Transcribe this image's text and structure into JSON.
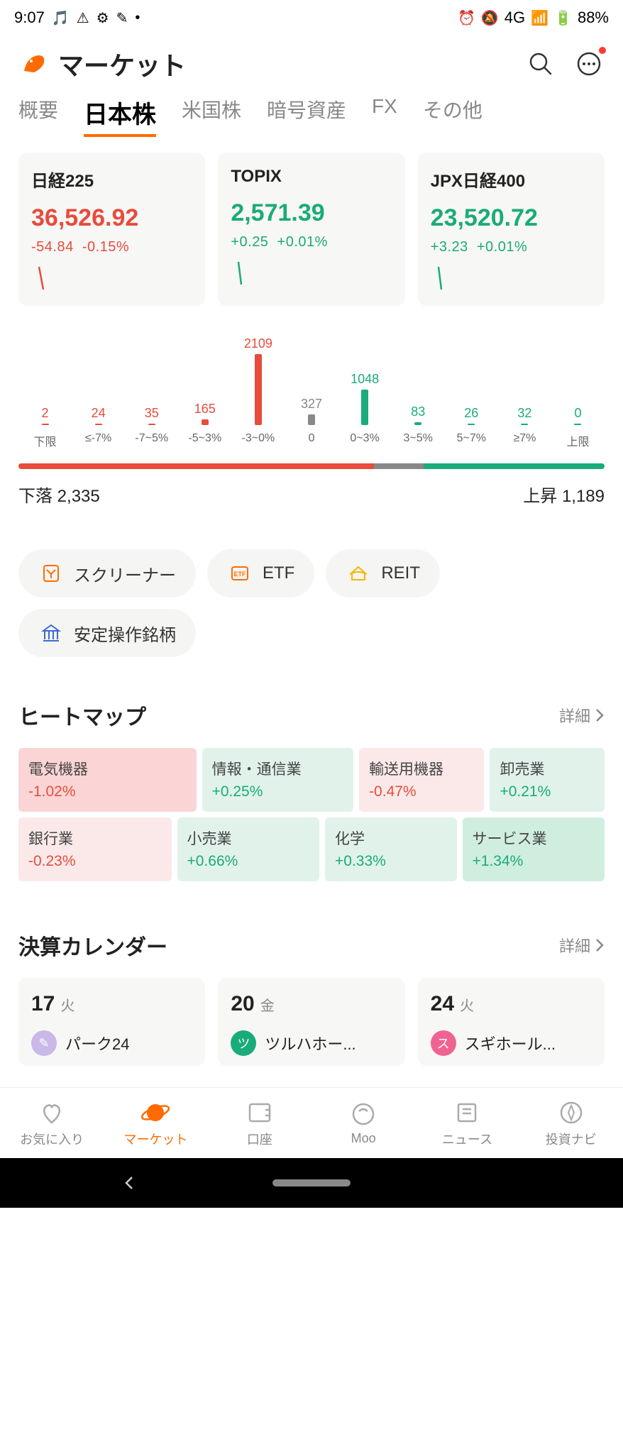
{
  "status": {
    "time": "9:07",
    "network": "4G",
    "battery": "88%"
  },
  "header": {
    "title": "マーケット"
  },
  "tabs": [
    "概要",
    "日本株",
    "米国株",
    "暗号資産",
    "FX",
    "その他"
  ],
  "active_tab": 1,
  "indices": [
    {
      "name": "日経225",
      "value": "36,526.92",
      "change": "-54.84",
      "pct": "-0.15%",
      "dir": "down",
      "color": "#e74c3c"
    },
    {
      "name": "TOPIX",
      "value": "2,571.39",
      "change": "+0.25",
      "pct": "+0.01%",
      "dir": "up",
      "color": "#1aab7a"
    },
    {
      "name": "JPX日経400",
      "value": "23,520.72",
      "change": "+3.23",
      "pct": "+0.01%",
      "dir": "up",
      "color": "#1aab7a"
    }
  ],
  "distribution": {
    "bars": [
      {
        "label": "下限",
        "value": 2,
        "color": "#e74c3c"
      },
      {
        "label": "≤-7%",
        "value": 24,
        "color": "#e74c3c"
      },
      {
        "label": "-7~5%",
        "value": 35,
        "color": "#e74c3c"
      },
      {
        "label": "-5~3%",
        "value": 165,
        "color": "#e74c3c"
      },
      {
        "label": "-3~0%",
        "value": 2109,
        "color": "#e74c3c"
      },
      {
        "label": "0",
        "value": 327,
        "color": "#888"
      },
      {
        "label": "0~3%",
        "value": 1048,
        "color": "#1aab7a"
      },
      {
        "label": "3~5%",
        "value": 83,
        "color": "#1aab7a"
      },
      {
        "label": "5~7%",
        "value": 26,
        "color": "#1aab7a"
      },
      {
        "label": "≥7%",
        "value": 32,
        "color": "#1aab7a"
      },
      {
        "label": "上限",
        "value": 0,
        "color": "#1aab7a"
      }
    ],
    "max": 2109,
    "strip": [
      {
        "color": "#e74c3c",
        "weight": 2335
      },
      {
        "color": "#888",
        "weight": 327
      },
      {
        "color": "#1aab7a",
        "weight": 1189
      }
    ],
    "down_label": "下落",
    "down_count": "2,335",
    "up_label": "上昇",
    "up_count": "1,189"
  },
  "pills": [
    {
      "label": "スクリーナー",
      "icon": "filter",
      "color": "#ff6b00"
    },
    {
      "label": "ETF",
      "icon": "etf",
      "color": "#ff6b00"
    },
    {
      "label": "REIT",
      "icon": "reit",
      "color": "#f5b500"
    },
    {
      "label": "安定操作銘柄",
      "icon": "bank",
      "color": "#3b6bd6"
    }
  ],
  "heatmap": {
    "title": "ヒートマップ",
    "detail": "詳細",
    "row1": [
      {
        "name": "電気機器",
        "pct": "-1.02%",
        "bg": "bg-red-strong",
        "color": "#e74c3c",
        "flex": 3
      },
      {
        "name": "情報・通信業",
        "pct": "+0.25%",
        "bg": "bg-green-weak",
        "color": "#1aab7a",
        "flex": 2.5
      },
      {
        "name": "輸送用機器",
        "pct": "-0.47%",
        "bg": "bg-red-weak",
        "color": "#e74c3c",
        "flex": 2
      },
      {
        "name": "卸売業",
        "pct": "+0.21%",
        "bg": "bg-green-weak",
        "color": "#1aab7a",
        "flex": 1.8
      }
    ],
    "row2": [
      {
        "name": "銀行業",
        "pct": "-0.23%",
        "bg": "bg-red-weak",
        "color": "#e74c3c",
        "flex": 2.5
      },
      {
        "name": "小売業",
        "pct": "+0.66%",
        "bg": "bg-green-weak",
        "color": "#1aab7a",
        "flex": 2.3
      },
      {
        "name": "化学",
        "pct": "+0.33%",
        "bg": "bg-green-weak",
        "color": "#1aab7a",
        "flex": 2.1
      },
      {
        "name": "サービス業",
        "pct": "+1.34%",
        "bg": "bg-green-strong",
        "color": "#1aab7a",
        "flex": 2.3
      }
    ]
  },
  "calendar": {
    "title": "決算カレンダー",
    "detail": "詳細",
    "items": [
      {
        "day": "17",
        "dow": "火",
        "stock": "パーク24",
        "badge_bg": "#c9b8e8",
        "badge_txt": "✎"
      },
      {
        "day": "20",
        "dow": "金",
        "stock": "ツルハホー...",
        "badge_bg": "#1aab7a",
        "badge_txt": "ツ"
      },
      {
        "day": "24",
        "dow": "火",
        "stock": "スギホール...",
        "badge_bg": "#f06292",
        "badge_txt": "ス"
      }
    ]
  },
  "bottom_nav": [
    {
      "label": "お気に入り",
      "icon": "heart"
    },
    {
      "label": "マーケット",
      "icon": "planet"
    },
    {
      "label": "口座",
      "icon": "wallet"
    },
    {
      "label": "Moo",
      "icon": "moo"
    },
    {
      "label": "ニュース",
      "icon": "news"
    },
    {
      "label": "投資ナビ",
      "icon": "compass"
    }
  ],
  "active_nav": 1
}
